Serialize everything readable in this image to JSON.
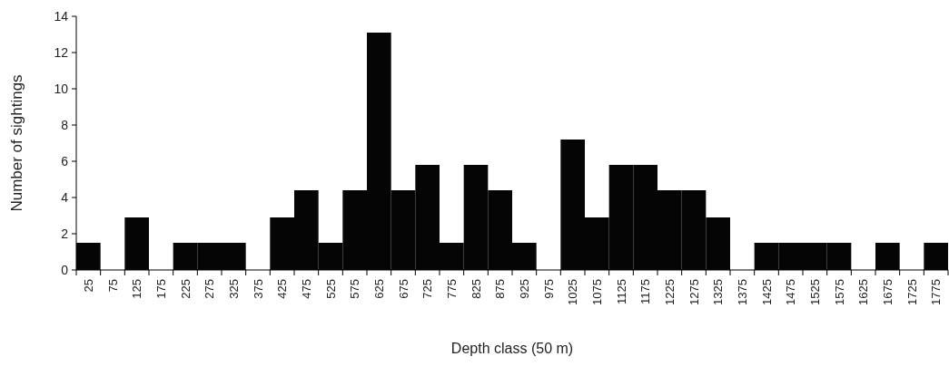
{
  "chart_data": {
    "type": "bar",
    "xlabel": "Depth class (50 m)",
    "ylabel": "Number of sightings",
    "categories": [
      "25",
      "75",
      "125",
      "175",
      "225",
      "275",
      "325",
      "375",
      "425",
      "475",
      "525",
      "575",
      "625",
      "675",
      "725",
      "775",
      "825",
      "875",
      "925",
      "975",
      "1025",
      "1075",
      "1125",
      "1175",
      "1225",
      "1275",
      "1325",
      "1375",
      "1425",
      "1475",
      "1525",
      "1575",
      "1625",
      "1675",
      "1725",
      "1775"
    ],
    "values": [
      1.5,
      0,
      2.9,
      0,
      1.5,
      1.5,
      1.5,
      0,
      2.9,
      4.4,
      1.5,
      4.4,
      13.1,
      4.4,
      5.8,
      1.5,
      5.8,
      4.4,
      1.5,
      0,
      7.2,
      2.9,
      5.8,
      5.8,
      4.4,
      4.4,
      2.9,
      0,
      1.5,
      1.5,
      1.5,
      1.5,
      0,
      1.5,
      0,
      1.5
    ],
    "color": "#050505",
    "ylim": [
      0,
      14
    ],
    "yticks": [
      0,
      2,
      4,
      6,
      8,
      10,
      12,
      14
    ],
    "grid": false
  }
}
